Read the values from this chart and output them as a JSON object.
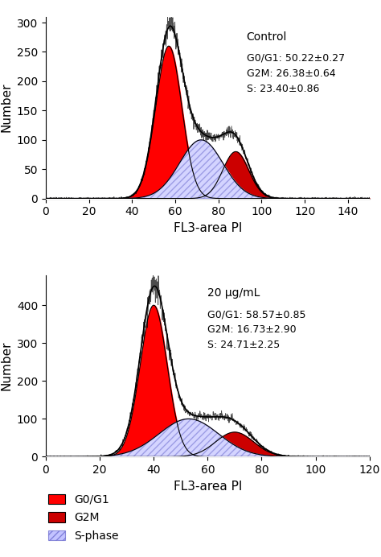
{
  "panel1": {
    "title": "Control",
    "annotation": "G0/G1: 50.22±0.27\nG2M: 26.38±0.64\nS: 23.40±0.86",
    "xlim": [
      0,
      150
    ],
    "ylim": [
      0,
      310
    ],
    "xticks": [
      0,
      20,
      40,
      60,
      80,
      100,
      120,
      140
    ],
    "yticks": [
      0,
      50,
      100,
      150,
      200,
      250,
      300
    ],
    "xlabel": "FL3-area PI",
    "ylabel": "Number",
    "g01_mean": 57,
    "g01_std": 6,
    "g01_amp": 260,
    "g2m_mean": 88,
    "g2m_std": 6,
    "g2m_amp": 80,
    "s_mean": 72,
    "s_std": 10,
    "s_amp": 100
  },
  "panel2": {
    "title": "20 μg/mL",
    "annotation": "G0/G1: 58.57±0.85\nG2M: 16.73±2.90\nS: 24.71±2.25",
    "xlim": [
      0,
      120
    ],
    "ylim": [
      0,
      480
    ],
    "xticks": [
      0,
      20,
      40,
      60,
      80,
      100,
      120
    ],
    "yticks": [
      0,
      100,
      200,
      300,
      400
    ],
    "xlabel": "FL3-area PI",
    "ylabel": "Number",
    "g01_mean": 40,
    "g01_std": 5,
    "g2m_mean": 70,
    "g2m_std": 7,
    "g01_amp": 400,
    "g2m_amp": 65,
    "s_mean": 53,
    "s_std": 11,
    "s_amp": 100
  },
  "colors": {
    "g01": "#ff0000",
    "g2m": "#cc0000",
    "s_fill": "#aaaaff",
    "s_hatch": "////",
    "curve": "black"
  }
}
